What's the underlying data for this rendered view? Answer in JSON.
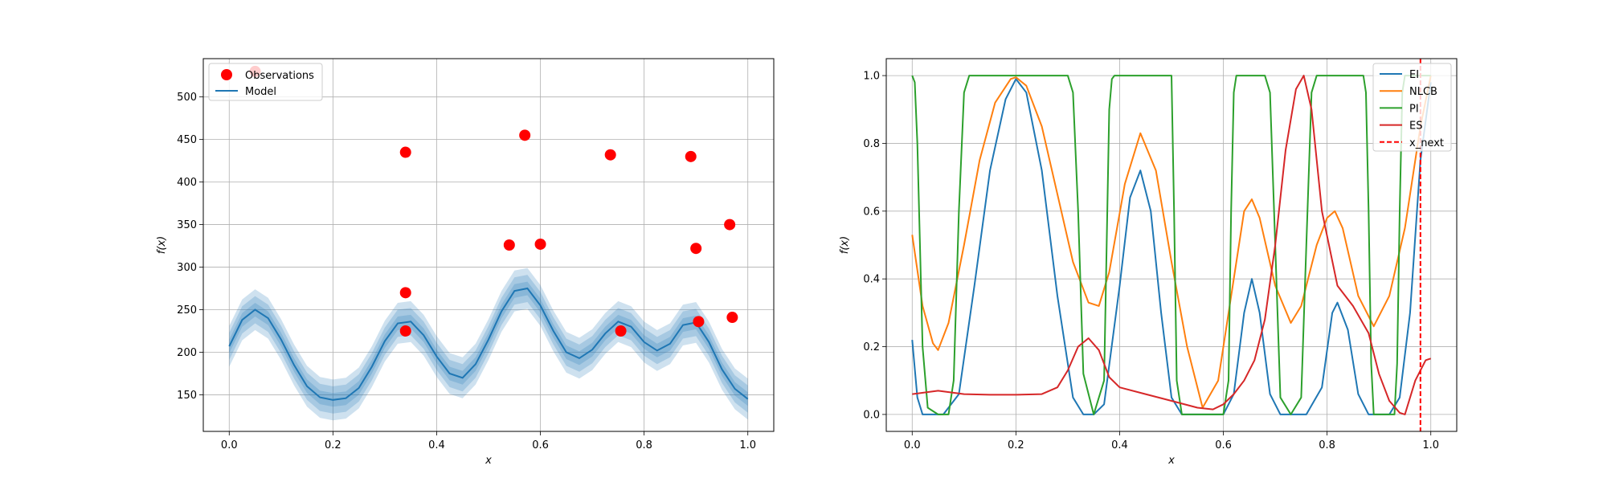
{
  "chart_data": [
    {
      "type": "scatter",
      "title": "",
      "xlabel": "x",
      "ylabel": "f(x)",
      "xlim": [
        -0.05,
        1.05
      ],
      "ylim": [
        107,
        545
      ],
      "xticks": [
        0.0,
        0.2,
        0.4,
        0.6,
        0.8,
        1.0
      ],
      "xtick_labels": [
        "0.0",
        "0.2",
        "0.4",
        "0.6",
        "0.8",
        "1.0"
      ],
      "yticks": [
        150,
        200,
        250,
        300,
        350,
        400,
        450,
        500
      ],
      "ytick_labels": [
        "150",
        "200",
        "250",
        "300",
        "350",
        "400",
        "450",
        "500"
      ],
      "grid": true,
      "legend_position": "top-left",
      "colors": {
        "observations": "#ff0000",
        "model": "#1f77b4"
      },
      "series": [
        {
          "name": "Observations",
          "kind": "scatter",
          "points": [
            [
              0.05,
              530
            ],
            [
              0.34,
              435
            ],
            [
              0.34,
              270
            ],
            [
              0.34,
              225
            ],
            [
              0.54,
              326
            ],
            [
              0.57,
              455
            ],
            [
              0.6,
              327
            ],
            [
              0.735,
              432
            ],
            [
              0.755,
              225
            ],
            [
              0.89,
              430
            ],
            [
              0.9,
              322
            ],
            [
              0.905,
              236
            ],
            [
              0.965,
              350
            ],
            [
              0.97,
              241
            ]
          ]
        },
        {
          "name": "Model",
          "kind": "line",
          "x": [
            0.0,
            0.025,
            0.05,
            0.075,
            0.1,
            0.125,
            0.15,
            0.175,
            0.2,
            0.225,
            0.25,
            0.275,
            0.3,
            0.325,
            0.35,
            0.375,
            0.4,
            0.425,
            0.45,
            0.475,
            0.5,
            0.525,
            0.55,
            0.575,
            0.6,
            0.625,
            0.65,
            0.675,
            0.7,
            0.725,
            0.75,
            0.775,
            0.8,
            0.825,
            0.85,
            0.875,
            0.9,
            0.925,
            0.95,
            0.975,
            1.0
          ],
          "y": [
            207,
            238,
            250,
            240,
            215,
            185,
            160,
            147,
            144,
            146,
            158,
            183,
            213,
            234,
            236,
            220,
            195,
            175,
            170,
            186,
            215,
            248,
            272,
            275,
            255,
            225,
            200,
            193,
            203,
            222,
            236,
            230,
            212,
            202,
            210,
            232,
            235,
            212,
            180,
            157,
            145
          ],
          "bands": [
            8,
            16,
            24
          ]
        }
      ]
    },
    {
      "type": "line",
      "title": "",
      "xlabel": "x",
      "ylabel": "f(x)",
      "xlim": [
        -0.05,
        1.05
      ],
      "ylim": [
        -0.05,
        1.05
      ],
      "xticks": [
        0.0,
        0.2,
        0.4,
        0.6,
        0.8,
        1.0
      ],
      "xtick_labels": [
        "0.0",
        "0.2",
        "0.4",
        "0.6",
        "0.8",
        "1.0"
      ],
      "yticks": [
        0.0,
        0.2,
        0.4,
        0.6,
        0.8,
        1.0
      ],
      "ytick_labels": [
        "0.0",
        "0.2",
        "0.4",
        "0.6",
        "0.8",
        "1.0"
      ],
      "grid": true,
      "legend_position": "top-right",
      "series": [
        {
          "name": "EI",
          "color": "#1f77b4",
          "x": [
            0.0,
            0.01,
            0.02,
            0.04,
            0.06,
            0.09,
            0.12,
            0.15,
            0.18,
            0.2,
            0.22,
            0.25,
            0.28,
            0.31,
            0.33,
            0.35,
            0.37,
            0.4,
            0.42,
            0.44,
            0.46,
            0.48,
            0.5,
            0.52,
            0.55,
            0.6,
            0.62,
            0.64,
            0.655,
            0.67,
            0.69,
            0.71,
            0.73,
            0.76,
            0.79,
            0.81,
            0.82,
            0.84,
            0.86,
            0.88,
            0.9,
            0.92,
            0.94,
            0.96,
            0.98,
            1.0
          ],
          "y": [
            0.22,
            0.05,
            0.0,
            0.0,
            0.0,
            0.06,
            0.38,
            0.72,
            0.93,
            0.99,
            0.95,
            0.72,
            0.35,
            0.05,
            0.0,
            0.0,
            0.03,
            0.38,
            0.64,
            0.72,
            0.6,
            0.3,
            0.05,
            0.0,
            0.0,
            0.0,
            0.06,
            0.3,
            0.4,
            0.3,
            0.06,
            0.0,
            0.0,
            0.0,
            0.08,
            0.3,
            0.33,
            0.25,
            0.06,
            0.0,
            0.0,
            0.0,
            0.05,
            0.3,
            0.75,
            0.98
          ]
        },
        {
          "name": "NLCB",
          "color": "#ff7f0e",
          "x": [
            0.0,
            0.02,
            0.04,
            0.05,
            0.07,
            0.1,
            0.13,
            0.16,
            0.19,
            0.2,
            0.22,
            0.25,
            0.28,
            0.31,
            0.34,
            0.36,
            0.38,
            0.41,
            0.44,
            0.47,
            0.5,
            0.53,
            0.56,
            0.59,
            0.62,
            0.64,
            0.655,
            0.67,
            0.7,
            0.73,
            0.75,
            0.78,
            0.8,
            0.815,
            0.83,
            0.86,
            0.89,
            0.92,
            0.95,
            0.98,
            1.0
          ],
          "y": [
            0.53,
            0.32,
            0.21,
            0.19,
            0.27,
            0.5,
            0.75,
            0.92,
            0.99,
            0.995,
            0.97,
            0.85,
            0.65,
            0.45,
            0.33,
            0.32,
            0.42,
            0.68,
            0.83,
            0.72,
            0.45,
            0.2,
            0.02,
            0.1,
            0.4,
            0.6,
            0.635,
            0.58,
            0.38,
            0.27,
            0.32,
            0.5,
            0.58,
            0.6,
            0.55,
            0.35,
            0.26,
            0.35,
            0.55,
            0.85,
            1.0
          ]
        },
        {
          "name": "PI",
          "color": "#2ca02c",
          "x": [
            0.0,
            0.005,
            0.01,
            0.02,
            0.03,
            0.05,
            0.07,
            0.08,
            0.09,
            0.1,
            0.11,
            0.3,
            0.31,
            0.32,
            0.33,
            0.35,
            0.37,
            0.375,
            0.38,
            0.385,
            0.39,
            0.5,
            0.505,
            0.51,
            0.52,
            0.6,
            0.61,
            0.615,
            0.62,
            0.625,
            0.68,
            0.69,
            0.7,
            0.71,
            0.73,
            0.75,
            0.76,
            0.77,
            0.78,
            0.79,
            0.87,
            0.875,
            0.88,
            0.885,
            0.89,
            0.93,
            0.935,
            0.94,
            0.945,
            0.95,
            1.0
          ],
          "y": [
            1.0,
            0.98,
            0.8,
            0.2,
            0.02,
            0.0,
            0.0,
            0.1,
            0.6,
            0.95,
            1.0,
            1.0,
            0.95,
            0.6,
            0.12,
            0.0,
            0.1,
            0.5,
            0.9,
            0.99,
            1.0,
            1.0,
            0.6,
            0.1,
            0.0,
            0.0,
            0.1,
            0.6,
            0.95,
            1.0,
            1.0,
            0.95,
            0.5,
            0.05,
            0.0,
            0.05,
            0.5,
            0.95,
            1.0,
            1.0,
            1.0,
            0.95,
            0.6,
            0.15,
            0.0,
            0.0,
            0.15,
            0.6,
            0.95,
            1.0,
            1.0
          ]
        },
        {
          "name": "ES",
          "color": "#d62728",
          "x": [
            0.0,
            0.05,
            0.1,
            0.15,
            0.2,
            0.25,
            0.28,
            0.3,
            0.32,
            0.34,
            0.36,
            0.38,
            0.4,
            0.45,
            0.5,
            0.55,
            0.58,
            0.6,
            0.62,
            0.64,
            0.66,
            0.68,
            0.7,
            0.72,
            0.74,
            0.755,
            0.77,
            0.79,
            0.82,
            0.85,
            0.88,
            0.9,
            0.92,
            0.94,
            0.95,
            0.97,
            0.99,
            1.0
          ],
          "y": [
            0.06,
            0.07,
            0.06,
            0.058,
            0.058,
            0.06,
            0.08,
            0.13,
            0.2,
            0.225,
            0.19,
            0.11,
            0.08,
            0.06,
            0.04,
            0.02,
            0.015,
            0.03,
            0.06,
            0.1,
            0.16,
            0.28,
            0.5,
            0.78,
            0.96,
            1.0,
            0.9,
            0.6,
            0.38,
            0.32,
            0.24,
            0.12,
            0.04,
            0.005,
            0.0,
            0.1,
            0.16,
            0.165
          ]
        }
      ],
      "vline": {
        "name": "x_next",
        "x": 0.98,
        "color": "#ff0000",
        "style": "dashed"
      }
    }
  ]
}
